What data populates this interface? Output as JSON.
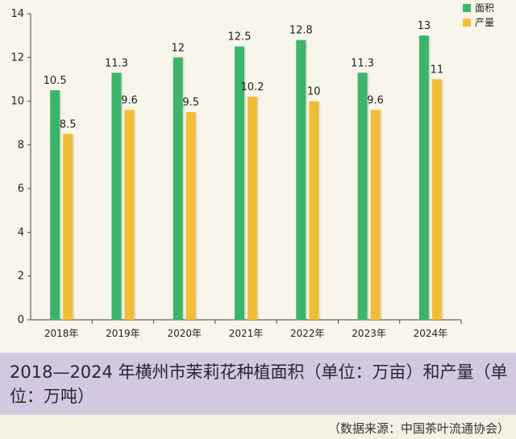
{
  "chart_data": {
    "type": "bar",
    "categories": [
      "2018年",
      "2019年",
      "2020年",
      "2021年",
      "2022年",
      "2023年",
      "2024年"
    ],
    "series": [
      {
        "name": "面积",
        "values": [
          10.5,
          11.3,
          12,
          12.5,
          12.8,
          11.3,
          13
        ],
        "labels": [
          "10.5",
          "11.3",
          "12",
          "12.5",
          "12.8",
          "11.3",
          "13"
        ],
        "color": "#3cb56a"
      },
      {
        "name": "产量",
        "values": [
          8.5,
          9.6,
          9.5,
          10.2,
          10,
          9.6,
          11
        ],
        "labels": [
          "8.5",
          "9.6",
          "9.5",
          "10.2",
          "10",
          "9.6",
          "11"
        ],
        "color": "#f2bd36"
      }
    ],
    "yticks": [
      "0",
      "2",
      "4",
      "6",
      "8",
      "10",
      "12",
      "14"
    ],
    "ylim": [
      0,
      14
    ],
    "legend_position": "top-right",
    "grid": false,
    "title": "2018—2024 年横州市茉莉花种植面积（单位：万亩）和产量（单位：万吨）"
  },
  "caption": {
    "title": "2018—2024 年横州市茉莉花种植面积（单位：万亩）和产量（单位：万吨）"
  },
  "source": "（数据来源：中国茶叶流通协会）"
}
